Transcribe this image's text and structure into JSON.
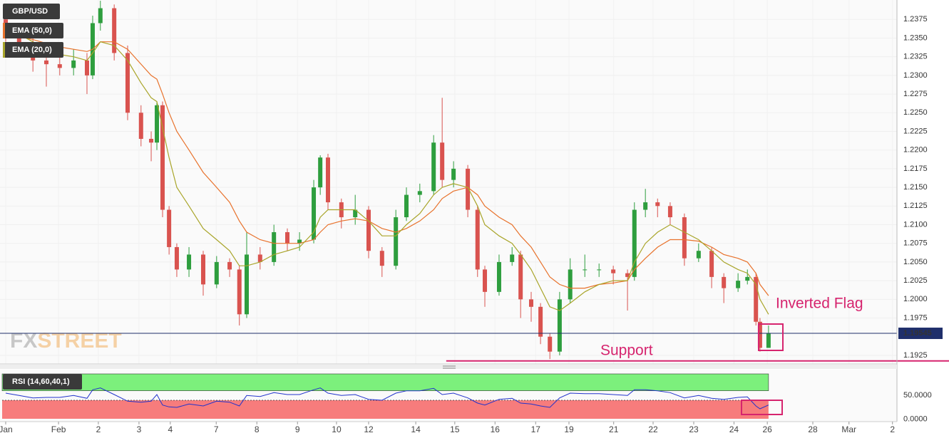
{
  "chart_data": {
    "type": "candlestick",
    "title": "GBP/USD",
    "x": [
      0,
      0.33,
      0.67,
      1,
      1.33,
      1.67,
      2,
      2.14,
      2.33,
      2.67,
      3,
      3.33,
      3.58,
      3.72,
      3.86,
      4.02,
      4.21,
      4.51,
      4.86,
      5.19,
      5.51,
      5.75,
      5.93,
      6.26,
      6.6,
      6.93,
      7.23,
      7.58,
      7.74,
      7.93,
      8.26,
      8.6,
      8.93,
      9.26,
      9.6,
      9.86,
      10.19,
      10.53,
      10.74,
      11.02,
      11.37,
      11.61,
      11.79,
      12.14,
      12.46,
      12.67,
      12.93,
      13.16,
      13.39,
      13.63,
      13.89,
      14.25,
      14.6,
      14.95,
      15.3,
      15.47,
      15.74,
      16.04,
      16.35,
      16.7,
      17.05,
      17.37,
      17.67,
      18.02,
      18.25,
      18.46,
      18.56,
      18.77
    ],
    "open": [
      1.2375,
      1.236,
      1.234,
      1.232,
      1.2315,
      1.231,
      1.232,
      1.23,
      1.237,
      1.239,
      1.233,
      1.225,
      1.2215,
      1.221,
      1.226,
      1.212,
      1.207,
      1.204,
      1.206,
      1.202,
      1.205,
      1.204,
      1.198,
      1.206,
      1.205,
      1.209,
      1.2075,
      1.208,
      1.215,
      1.219,
      1.213,
      1.211,
      1.212,
      1.2065,
      1.2045,
      1.211,
      1.214,
      1.2145,
      1.221,
      1.216,
      1.2175,
      1.212,
      1.204,
      1.201,
      1.205,
      1.206,
      1.2,
      1.199,
      1.195,
      1.193,
      1.2,
      1.204,
      1.204,
      1.204,
      1.2035,
      1.203,
      1.212,
      1.213,
      1.2125,
      1.211,
      1.2055,
      1.2065,
      1.203,
      1.2015,
      1.2025,
      1.203,
      1.197,
      1.1935
    ],
    "high": [
      1.2385,
      1.237,
      1.235,
      1.2332,
      1.2325,
      1.2335,
      1.233,
      1.238,
      1.24,
      1.2395,
      1.234,
      1.226,
      1.2225,
      1.2265,
      1.2265,
      1.2125,
      1.2075,
      1.207,
      1.2065,
      1.2058,
      1.2055,
      1.2045,
      1.209,
      1.207,
      1.21,
      1.2095,
      1.209,
      1.216,
      1.2193,
      1.2195,
      1.2135,
      1.214,
      1.2125,
      1.207,
      1.212,
      1.215,
      1.2155,
      1.222,
      1.227,
      1.2185,
      1.218,
      1.2125,
      1.2045,
      1.206,
      1.207,
      1.2065,
      1.201,
      1.1995,
      1.1955,
      1.201,
      1.2055,
      1.206,
      1.2048,
      1.2045,
      1.204,
      1.213,
      1.2148,
      1.2135,
      1.213,
      1.2115,
      1.2075,
      1.207,
      1.2035,
      1.2035,
      1.204,
      1.2035,
      1.1975,
      1.1965
    ],
    "low": [
      1.2345,
      1.2325,
      1.2305,
      1.2285,
      1.23,
      1.23,
      1.2275,
      1.2295,
      1.236,
      1.232,
      1.224,
      1.2205,
      1.2185,
      1.22,
      1.211,
      1.206,
      1.203,
      1.203,
      1.2005,
      1.2015,
      1.203,
      1.1965,
      1.1975,
      1.204,
      1.2045,
      1.2065,
      1.2065,
      1.2075,
      1.214,
      1.212,
      1.2095,
      1.21,
      1.2055,
      1.203,
      1.204,
      1.2105,
      1.213,
      1.214,
      1.215,
      1.215,
      1.211,
      1.203,
      1.199,
      1.2005,
      1.2045,
      1.1975,
      1.197,
      1.194,
      1.192,
      1.1925,
      1.1995,
      1.203,
      1.203,
      1.202,
      1.1985,
      1.2025,
      1.211,
      1.211,
      1.21,
      1.2045,
      1.205,
      1.2015,
      1.1995,
      1.201,
      1.202,
      1.1965,
      1.193,
      1.1935
    ],
    "close": [
      1.236,
      1.234,
      1.232,
      1.2315,
      1.231,
      1.232,
      1.23,
      1.237,
      1.239,
      1.233,
      1.225,
      1.2215,
      1.221,
      1.226,
      1.212,
      1.207,
      1.204,
      1.206,
      1.202,
      1.205,
      1.204,
      1.198,
      1.206,
      1.205,
      1.209,
      1.2075,
      1.208,
      1.215,
      1.219,
      1.213,
      1.211,
      1.212,
      1.2065,
      1.2045,
      1.211,
      1.214,
      1.2145,
      1.221,
      1.216,
      1.2175,
      1.212,
      1.204,
      1.201,
      1.205,
      1.206,
      1.2,
      1.199,
      1.195,
      1.193,
      1.2,
      1.204,
      1.204,
      1.204,
      1.2035,
      1.203,
      1.212,
      1.213,
      1.2125,
      1.211,
      1.2055,
      1.2065,
      1.203,
      1.2015,
      1.2025,
      1.203,
      1.197,
      1.1935,
      1.1955
    ],
    "up_color": "#2e9e3e",
    "down_color": "#d9534f",
    "series": [
      {
        "name": "EMA (50,0)",
        "color": "#e8722c",
        "values": [
          1.2355,
          1.2352,
          1.2348,
          1.2343,
          1.2338,
          1.2335,
          1.2332,
          1.2335,
          1.2345,
          1.2345,
          1.2335,
          1.2315,
          1.23,
          1.2295,
          1.2275,
          1.225,
          1.2225,
          1.22,
          1.217,
          1.215,
          1.213,
          1.2105,
          1.209,
          1.208,
          1.2075,
          1.2075,
          1.2075,
          1.208,
          1.209,
          1.21,
          1.2105,
          1.2108,
          1.2105,
          1.2095,
          1.209,
          1.2095,
          1.2105,
          1.212,
          1.2135,
          1.2145,
          1.215,
          1.214,
          1.2125,
          1.211,
          1.21,
          1.2085,
          1.207,
          1.205,
          1.203,
          1.202,
          1.2015,
          1.2015,
          1.202,
          1.2022,
          1.2025,
          1.204,
          1.2055,
          1.207,
          1.208,
          1.208,
          1.2078,
          1.207,
          1.206,
          1.2055,
          1.205,
          1.2035,
          1.202,
          1.2005
        ]
      },
      {
        "name": "EMA (20,0)",
        "color": "#a9a52a",
        "values": [
          1.2365,
          1.2355,
          1.2345,
          1.2335,
          1.2328,
          1.2325,
          1.232,
          1.233,
          1.2345,
          1.234,
          1.232,
          1.229,
          1.227,
          1.2265,
          1.223,
          1.219,
          1.215,
          1.2125,
          1.2095,
          1.208,
          1.2065,
          1.2045,
          1.2045,
          1.205,
          1.206,
          1.2065,
          1.207,
          1.209,
          1.211,
          1.212,
          1.212,
          1.212,
          1.2105,
          1.2085,
          1.2085,
          1.21,
          1.2115,
          1.214,
          1.215,
          1.2155,
          1.215,
          1.2125,
          1.21,
          1.2085,
          1.2075,
          1.206,
          1.204,
          1.2015,
          1.199,
          1.1985,
          1.1995,
          1.201,
          1.202,
          1.2025,
          1.2025,
          1.205,
          1.2075,
          1.209,
          1.21,
          1.209,
          1.208,
          1.2065,
          1.205,
          1.204,
          1.2035,
          1.202,
          1.2,
          1.198
        ]
      }
    ],
    "xlim": [
      -0.14,
      21.93
    ],
    "xticks": [
      {
        "value": 0,
        "label": "Jan"
      },
      {
        "value": 1.3,
        "label": "Feb"
      },
      {
        "value": 2.28,
        "label": "2"
      },
      {
        "value": 3.28,
        "label": "3"
      },
      {
        "value": 4.05,
        "label": "4"
      },
      {
        "value": 5.18,
        "label": "7"
      },
      {
        "value": 6.18,
        "label": "8"
      },
      {
        "value": 7.18,
        "label": "9"
      },
      {
        "value": 8.14,
        "label": "10"
      },
      {
        "value": 8.93,
        "label": "12"
      },
      {
        "value": 10.09,
        "label": "14"
      },
      {
        "value": 11.05,
        "label": "15"
      },
      {
        "value": 12.04,
        "label": "16"
      },
      {
        "value": 13.04,
        "label": "17"
      },
      {
        "value": 13.86,
        "label": "19"
      },
      {
        "value": 14.96,
        "label": "21"
      },
      {
        "value": 15.93,
        "label": "22"
      },
      {
        "value": 16.93,
        "label": "23"
      },
      {
        "value": 17.92,
        "label": "24"
      },
      {
        "value": 18.74,
        "label": "26"
      },
      {
        "value": 19.86,
        "label": "28"
      },
      {
        "value": 20.75,
        "label": "Mar"
      },
      {
        "value": 21.82,
        "label": "2"
      }
    ],
    "ylim": [
      1.19135,
      1.2401
    ],
    "yticks": [
      1.2375,
      {
        "value": 1.235,
        "label": "1.2350"
      },
      1.2325,
      {
        "value": 1.23,
        "label": "1.2300"
      },
      1.2275,
      {
        "value": 1.225,
        "label": "1.2250"
      },
      1.2225,
      {
        "value": 1.22,
        "label": "1.2200"
      },
      1.2175,
      {
        "value": 1.215,
        "label": "1.2150"
      },
      1.2125,
      {
        "value": 1.21,
        "label": "1.2100"
      },
      1.2075,
      {
        "value": 1.205,
        "label": "1.2050"
      },
      1.2025,
      {
        "value": 1.2,
        "label": "1.2000"
      },
      1.1975,
      1.1925
    ],
    "grid": true,
    "last_price": 1.19545,
    "support": {
      "value": 1.19175,
      "x_start": 10.84,
      "color": "#d6246e"
    },
    "annotations": [
      {
        "text": "Inverted Flag"
      },
      {
        "text": "Support"
      }
    ],
    "watermark": {
      "fx": "FX",
      "street": "STREET"
    },
    "rsi": {
      "name": "RSI (14,60,40,1)",
      "color": "#2233cc",
      "values": [
        55,
        50,
        45,
        46,
        46,
        50,
        44,
        62,
        66,
        52,
        38,
        36,
        38,
        52,
        30,
        26,
        25,
        32,
        28,
        38,
        36,
        28,
        50,
        48,
        56,
        52,
        52,
        62,
        66,
        55,
        50,
        52,
        42,
        40,
        55,
        60,
        60,
        65,
        52,
        55,
        45,
        34,
        30,
        42,
        44,
        34,
        32,
        28,
        25,
        45,
        55,
        54,
        54,
        52,
        50,
        62,
        62,
        60,
        56,
        45,
        50,
        44,
        42,
        46,
        47,
        28,
        22,
        30
      ],
      "ylim": [
        -5,
        100
      ],
      "yticks": [
        {
          "value": 50,
          "label": "50.0000"
        },
        {
          "value": 0,
          "label": "0.0000"
        }
      ],
      "levels": [
        40,
        60
      ],
      "upper_color": "#7cf07c",
      "lower_color": "#f77c7c"
    }
  }
}
